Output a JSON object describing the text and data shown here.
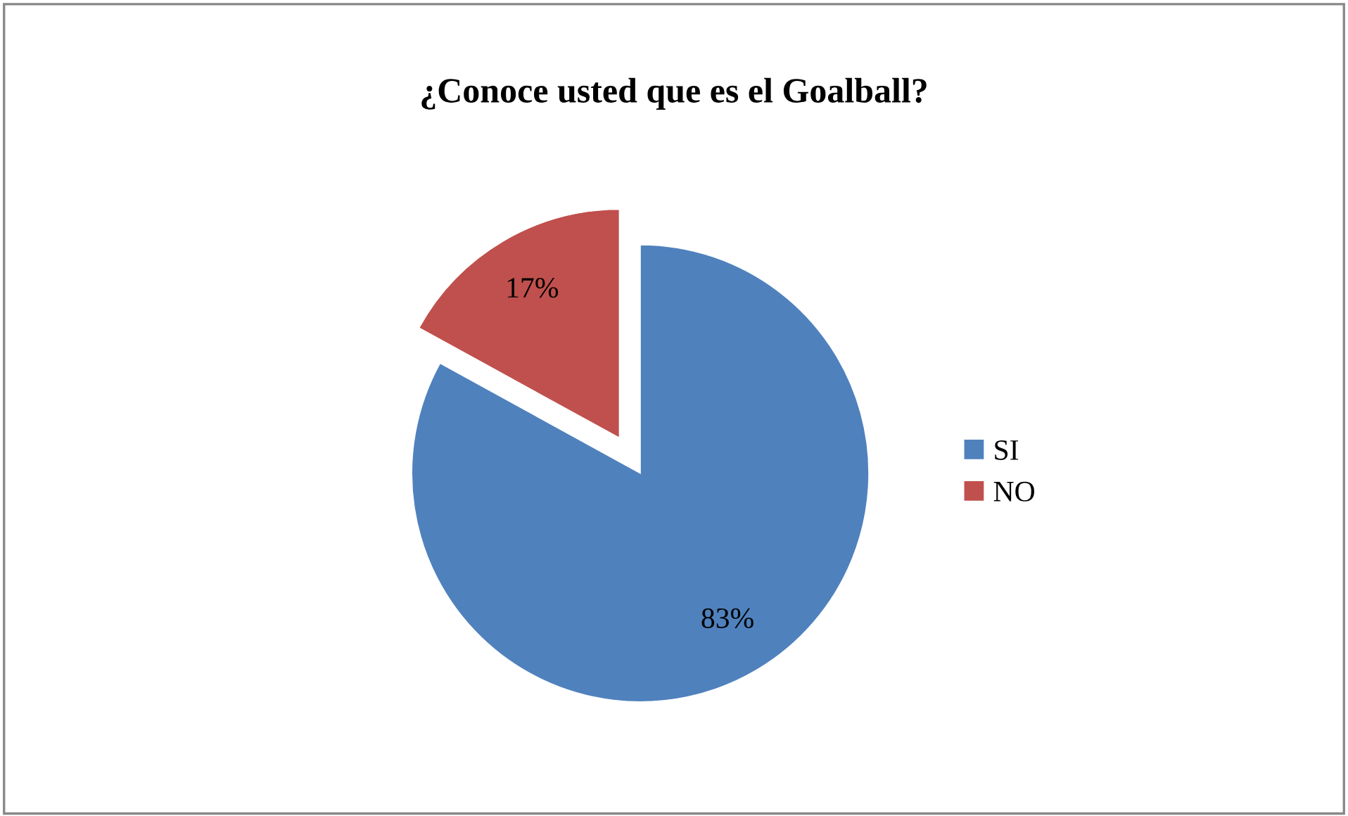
{
  "chart_data": {
    "type": "pie",
    "title": "¿Conoce usted que es el Goalball?",
    "categories": [
      "SI",
      "NO"
    ],
    "values": [
      83,
      17
    ],
    "colors": [
      "#4f81bd",
      "#c0504d"
    ],
    "value_labels": [
      "83%",
      "17%"
    ],
    "legend": "right"
  }
}
